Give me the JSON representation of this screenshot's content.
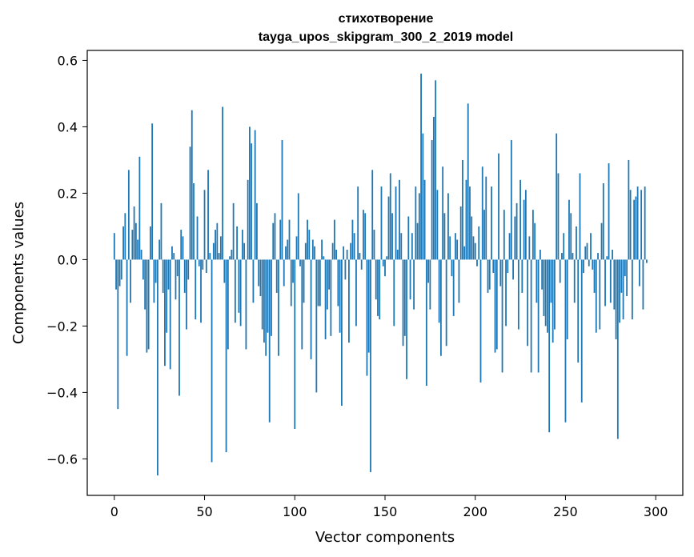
{
  "chart_data": {
    "type": "bar",
    "title": "стихотворение",
    "subtitle": "tayga_upos_skipgram_300_2_2019 model",
    "xlabel": "Vector components",
    "ylabel": "Components values",
    "xlim": [
      -15,
      315
    ],
    "ylim": [
      -0.71,
      0.63
    ],
    "xticks": [
      0,
      50,
      100,
      150,
      200,
      250,
      300
    ],
    "yticks": [
      -0.6,
      -0.4,
      -0.2,
      0.0,
      0.2,
      0.4,
      0.6
    ],
    "ytick_labels": [
      "−0.6",
      "−0.4",
      "−0.2",
      "0.0",
      "0.2",
      "0.4",
      "0.6"
    ],
    "xtick_labels": [
      "0",
      "50",
      "100",
      "150",
      "200",
      "250",
      "300"
    ],
    "color": "#1f77b4",
    "values": [
      0.08,
      -0.09,
      -0.45,
      -0.08,
      -0.06,
      0.1,
      0.14,
      -0.29,
      0.27,
      -0.13,
      0.09,
      0.16,
      0.11,
      0.06,
      0.31,
      0.03,
      -0.06,
      -0.15,
      -0.28,
      -0.27,
      0.1,
      0.41,
      -0.13,
      -0.07,
      -0.65,
      0.06,
      0.17,
      -0.1,
      -0.32,
      -0.22,
      -0.09,
      -0.33,
      0.04,
      0.02,
      -0.12,
      -0.05,
      -0.41,
      0.09,
      0.07,
      -0.1,
      -0.21,
      -0.06,
      0.34,
      0.45,
      0.23,
      -0.18,
      0.13,
      -0.02,
      -0.19,
      -0.03,
      0.21,
      -0.04,
      0.27,
      0.02,
      -0.61,
      0.05,
      0.09,
      0.11,
      0.02,
      0.07,
      0.46,
      -0.07,
      -0.58,
      -0.27,
      0.01,
      0.03,
      0.17,
      -0.19,
      0.1,
      -0.16,
      -0.2,
      0.09,
      0.05,
      -0.27,
      0.24,
      0.4,
      0.35,
      -0.13,
      0.39,
      0.17,
      -0.08,
      -0.11,
      -0.21,
      -0.25,
      -0.29,
      -0.22,
      -0.49,
      -0.23,
      0.11,
      0.14,
      -0.1,
      -0.29,
      0.12,
      0.36,
      -0.08,
      0.04,
      0.06,
      0.12,
      -0.14,
      -0.07,
      -0.51,
      0.07,
      0.2,
      -0.02,
      -0.27,
      -0.13,
      0.05,
      0.12,
      0.09,
      -0.3,
      0.06,
      0.04,
      -0.4,
      -0.14,
      -0.14,
      0.06,
      0.01,
      -0.24,
      -0.15,
      -0.09,
      -0.23,
      0.05,
      0.12,
      0.03,
      -0.14,
      -0.22,
      -0.44,
      0.04,
      -0.06,
      0.03,
      -0.25,
      0.05,
      0.12,
      0.08,
      -0.2,
      0.22,
      0.02,
      -0.03,
      0.15,
      0.14,
      -0.35,
      -0.28,
      -0.64,
      0.27,
      0.09,
      -0.12,
      -0.17,
      -0.18,
      0.22,
      -0.02,
      -0.05,
      0.01,
      0.19,
      0.26,
      0.14,
      -0.2,
      0.22,
      0.03,
      0.24,
      0.08,
      -0.26,
      -0.23,
      -0.36,
      0.13,
      -0.12,
      0.08,
      -0.15,
      0.22,
      0.11,
      0.2,
      0.56,
      0.38,
      0.24,
      -0.38,
      -0.07,
      -0.15,
      0.36,
      0.43,
      0.54,
      0.21,
      -0.19,
      -0.29,
      0.28,
      0.14,
      -0.26,
      0.2,
      0.07,
      -0.05,
      -0.17,
      0.08,
      0.06,
      -0.13,
      0.16,
      0.3,
      0.04,
      0.24,
      0.47,
      0.22,
      0.13,
      0.07,
      0.05,
      -0.02,
      0.1,
      -0.37,
      0.28,
      0.15,
      0.25,
      -0.1,
      -0.09,
      0.22,
      -0.04,
      -0.28,
      -0.27,
      0.32,
      -0.08,
      -0.34,
      0.15,
      -0.2,
      -0.04,
      0.08,
      0.36,
      -0.06,
      0.13,
      0.17,
      -0.21,
      0.24,
      -0.1,
      0.18,
      0.21,
      -0.26,
      0.07,
      -0.34,
      0.15,
      0.11,
      -0.13,
      -0.34,
      0.03,
      -0.09,
      -0.17,
      -0.2,
      -0.22,
      -0.52,
      -0.13,
      -0.25,
      -0.21,
      0.38,
      0.26,
      -0.07,
      0.02,
      0.08,
      -0.49,
      -0.24,
      0.18,
      0.14,
      0.02,
      -0.13,
      0.1,
      -0.31,
      0.26,
      -0.43,
      -0.04,
      0.04,
      0.05,
      -0.02,
      0.08,
      -0.03,
      -0.1,
      -0.22,
      0.02,
      -0.21,
      0.11,
      0.23,
      -0.14,
      0.01,
      0.29,
      -0.13,
      0.03,
      -0.15,
      -0.24,
      -0.54,
      -0.19,
      -0.1,
      -0.18,
      -0.05,
      -0.11,
      0.3,
      0.21,
      -0.18,
      0.18,
      0.19,
      0.22,
      -0.08,
      0.21,
      -0.15,
      0.22,
      -0.01
    ]
  }
}
